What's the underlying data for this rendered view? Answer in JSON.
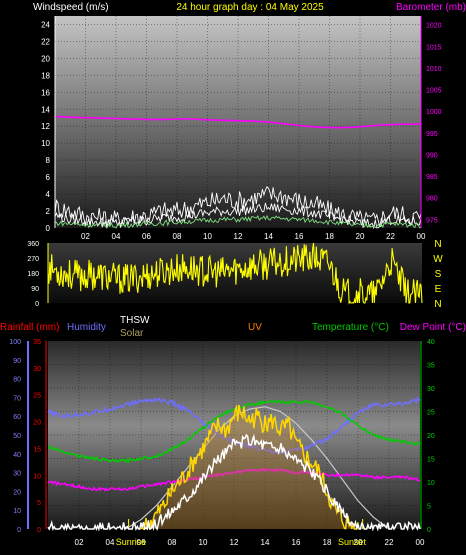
{
  "colors": {
    "wind": "#ffffff",
    "gust": "#ffffff",
    "wind_avg": "#7fe07f",
    "barometer": "#ff00ff",
    "direction": "#ffff00",
    "rain": "#ff0000",
    "humidity": "#6f6fff",
    "thsw": "#ffffff",
    "solar": "#ffd700",
    "uv": "#ff7f00",
    "temperature": "#00cc00",
    "dewpoint": "#ff00ff",
    "solar_max": "#c8c8c8"
  },
  "chart_data": [
    {
      "type": "line",
      "title": "24 hour graph day : 04 May 2025",
      "left_label": "Windspeed (m/s)",
      "right_label": "Barometer (mb)",
      "x_ticks": [
        "02",
        "04",
        "06",
        "08",
        "10",
        "12",
        "14",
        "16",
        "18",
        "20",
        "22",
        "00"
      ],
      "y_left_ticks": [
        "0",
        "2",
        "4",
        "6",
        "8",
        "10",
        "12",
        "14",
        "16",
        "18",
        "20",
        "22",
        "24"
      ],
      "y_left_range": [
        0,
        25
      ],
      "y_right_ticks": [
        "975",
        "980",
        "985",
        "990",
        "995",
        "1000",
        "1005",
        "1010",
        "1015",
        "1020"
      ],
      "y_right_range": [
        973,
        1022
      ],
      "grid": true,
      "series": [
        {
          "key": "barometer",
          "axis": "right",
          "x": [
            0,
            1,
            2,
            3,
            4,
            5,
            6,
            7,
            8,
            9,
            10,
            11,
            12,
            13,
            14,
            15,
            16,
            17,
            18,
            19,
            20,
            21,
            22,
            23,
            24
          ],
          "values": [
            998.8,
            998.6,
            998.5,
            998.4,
            998.3,
            998.2,
            998.1,
            998.1,
            998.2,
            998.2,
            998.0,
            997.9,
            997.8,
            997.7,
            997.5,
            997.1,
            996.7,
            996.4,
            996.2,
            996.2,
            996.4,
            996.7,
            996.9,
            997.0,
            997.0
          ]
        },
        {
          "key": "gust",
          "axis": "left",
          "x": [
            0,
            1,
            2,
            3,
            4,
            5,
            6,
            7,
            8,
            9,
            10,
            11,
            12,
            13,
            14,
            15,
            16,
            17,
            18,
            19,
            20,
            21,
            22,
            23,
            24
          ],
          "values": [
            2.5,
            2.0,
            1.4,
            1.2,
            1.0,
            1.3,
            1.5,
            2.0,
            2.0,
            2.5,
            3.0,
            3.5,
            3.2,
            3.5,
            4.0,
            3.8,
            3.2,
            2.8,
            2.0,
            1.5,
            1.0,
            0.8,
            1.8,
            1.5,
            1.2
          ]
        },
        {
          "key": "wind",
          "axis": "left",
          "x": [
            0,
            1,
            2,
            3,
            4,
            5,
            6,
            7,
            8,
            9,
            10,
            11,
            12,
            13,
            14,
            15,
            16,
            17,
            18,
            19,
            20,
            21,
            22,
            23,
            24
          ],
          "values": [
            1.5,
            1.0,
            0.8,
            0.7,
            0.6,
            0.8,
            0.9,
            1.2,
            1.3,
            1.5,
            1.8,
            2.0,
            2.0,
            2.2,
            2.4,
            2.3,
            2.0,
            1.8,
            1.3,
            1.0,
            0.6,
            0.5,
            1.0,
            0.8,
            0.7
          ]
        },
        {
          "key": "wind_avg",
          "axis": "left",
          "x": [
            0,
            1,
            2,
            3,
            4,
            5,
            6,
            7,
            8,
            9,
            10,
            11,
            12,
            13,
            14,
            15,
            16,
            17,
            18,
            19,
            20,
            21,
            22,
            23,
            24
          ],
          "values": [
            0.6,
            0.5,
            0.4,
            0.3,
            0.3,
            0.4,
            0.5,
            0.6,
            0.7,
            0.8,
            0.9,
            1.0,
            1.0,
            1.1,
            1.2,
            1.1,
            1.0,
            0.9,
            0.7,
            0.5,
            0.3,
            0.3,
            0.5,
            0.4,
            0.3
          ]
        }
      ]
    },
    {
      "type": "scatter",
      "left_ticks": [
        "0",
        "90",
        "180",
        "270",
        "360"
      ],
      "y_range": [
        0,
        360
      ],
      "right_labels": [
        "N",
        "W",
        "S",
        "E",
        "N"
      ],
      "x_ticks": [
        "02",
        "04",
        "06",
        "08",
        "10",
        "12",
        "14",
        "16",
        "18",
        "20",
        "22",
        "00"
      ],
      "series": [
        {
          "key": "direction",
          "x": [
            0,
            1,
            2,
            3,
            4,
            5,
            6,
            7,
            8,
            9,
            10,
            11,
            12,
            13,
            14,
            15,
            16,
            17,
            18,
            19,
            20,
            21,
            22,
            23,
            24
          ],
          "values": [
            210,
            180,
            160,
            170,
            150,
            140,
            160,
            180,
            200,
            210,
            190,
            180,
            200,
            220,
            230,
            250,
            260,
            270,
            240,
            50,
            60,
            40,
            250,
            60,
            40
          ]
        }
      ]
    },
    {
      "type": "line",
      "labels": {
        "rain": "Rainfall (mm)",
        "humidity": "Humidity",
        "thsw": "THSW",
        "solar": "Solar",
        "uv": "UV",
        "temperature": "Temperature (°C)",
        "dewpoint": "Dew Point (°C)",
        "sunrise": "Sunrise",
        "sunset": "Sunset"
      },
      "x_ticks": [
        "02",
        "04",
        "06",
        "08",
        "10",
        "12",
        "14",
        "16",
        "18",
        "20",
        "22",
        "00"
      ],
      "y_humidity_ticks": [
        "0",
        "10",
        "20",
        "30",
        "40",
        "50",
        "60",
        "70",
        "80",
        "90",
        "100"
      ],
      "y_rain_ticks": [
        "0",
        "5",
        "10",
        "15",
        "20",
        "25",
        "30",
        "35"
      ],
      "y_right_ticks": [
        "0",
        "5",
        "10",
        "15",
        "20",
        "25",
        "30",
        "35",
        "40"
      ],
      "y_right_range": [
        0,
        40
      ],
      "grid": true,
      "sunrise_hour": 5.2,
      "sunset_hour": 20.3,
      "series": [
        {
          "key": "humidity",
          "axis": "humidity",
          "x": [
            0,
            1,
            2,
            3,
            4,
            5,
            6,
            7,
            8,
            9,
            10,
            11,
            12,
            13,
            14,
            15,
            16,
            17,
            18,
            19,
            20,
            21,
            22,
            23,
            24
          ],
          "values": [
            62,
            60,
            61,
            62,
            64,
            66,
            68,
            69,
            67,
            63,
            56,
            50,
            46,
            44,
            42,
            41,
            42,
            44,
            48,
            55,
            62,
            66,
            66,
            67,
            69
          ]
        },
        {
          "key": "temperature",
          "axis": "right",
          "x": [
            0,
            1,
            2,
            3,
            4,
            5,
            6,
            7,
            8,
            9,
            10,
            11,
            12,
            13,
            14,
            15,
            16,
            17,
            18,
            19,
            20,
            21,
            22,
            23,
            24
          ],
          "values": [
            17.5,
            16.5,
            15.5,
            15,
            14.5,
            14.5,
            15,
            15.5,
            17,
            19,
            21.5,
            24,
            25.5,
            26.5,
            27,
            27,
            27,
            27,
            26,
            24.5,
            22,
            20,
            19,
            18.5,
            18
          ]
        },
        {
          "key": "dewpoint",
          "axis": "right",
          "x": [
            0,
            1,
            2,
            3,
            4,
            5,
            6,
            7,
            8,
            9,
            10,
            11,
            12,
            13,
            14,
            15,
            16,
            17,
            18,
            19,
            20,
            21,
            22,
            23,
            24
          ],
          "values": [
            10,
            9.5,
            9,
            8.5,
            8.5,
            8.5,
            9,
            9.5,
            10,
            10.5,
            11,
            11.5,
            12,
            12.5,
            12.5,
            12.5,
            12,
            12,
            11.5,
            11.5,
            11.5,
            11,
            11,
            11,
            10.5
          ]
        },
        {
          "key": "solar_max",
          "axis": "right",
          "x": [
            5,
            6,
            7,
            8,
            9,
            10,
            11,
            12,
            13,
            14,
            15,
            16,
            17,
            18,
            19,
            20,
            21,
            22
          ],
          "values": [
            0,
            2,
            5,
            9,
            13,
            17,
            21,
            24,
            25.5,
            26,
            25,
            22.5,
            19,
            15,
            10.5,
            6,
            2.5,
            0
          ]
        },
        {
          "key": "solar",
          "axis": "right",
          "x": [
            6,
            6.5,
            7,
            7.5,
            8,
            8.5,
            9,
            9.5,
            10,
            10.5,
            11,
            11.5,
            12,
            12.5,
            13,
            13.5,
            14,
            14.5,
            15,
            15.5,
            16,
            16.5,
            17,
            17.5,
            18,
            18.5,
            19,
            19.5,
            20
          ],
          "values": [
            0,
            1,
            3,
            5,
            8,
            10,
            12,
            15,
            17,
            20,
            22,
            21,
            24,
            25,
            23,
            24,
            22,
            23,
            21,
            22,
            18,
            16,
            14,
            12,
            8,
            4,
            2,
            1,
            0
          ]
        },
        {
          "key": "thsw",
          "axis": "right",
          "x": [
            0,
            2,
            4,
            6,
            7,
            8,
            9,
            10,
            11,
            12,
            13,
            14,
            15,
            16,
            17,
            18,
            19,
            20,
            21,
            22,
            23,
            24
          ],
          "values": [
            0,
            0,
            0,
            0,
            1,
            4,
            7,
            11,
            15,
            18,
            19,
            18,
            17,
            15,
            12,
            8,
            3,
            0,
            0,
            0,
            0,
            0
          ]
        }
      ]
    }
  ]
}
